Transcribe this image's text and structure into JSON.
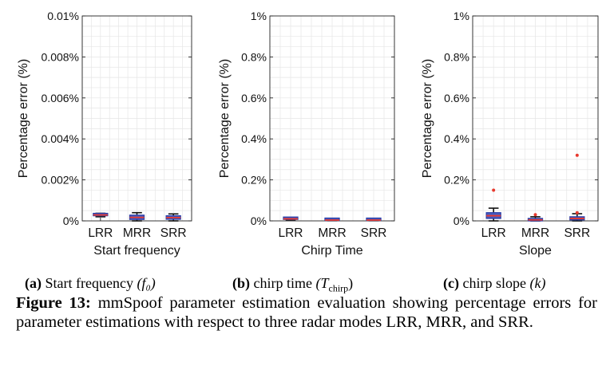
{
  "chart_data": [
    {
      "type": "box",
      "xlabel": "Start frequency",
      "ylabel": "Percentage error (%)",
      "ylim": [
        0,
        0.01
      ],
      "yticks": [
        "0%",
        "0.002%",
        "0.004%",
        "0.006%",
        "0.008%",
        "0.01%"
      ],
      "grid": true,
      "categories": [
        "LRR",
        "MRR",
        "SRR"
      ],
      "boxes": [
        {
          "q1": 0.00025,
          "median": 0.00029,
          "q3": 0.00033,
          "whisker_low": 0.0002,
          "whisker_high": 0.00037,
          "outliers": []
        },
        {
          "q1": 7e-05,
          "median": 0.00017,
          "q3": 0.00028,
          "whisker_low": 0.0,
          "whisker_high": 0.0004,
          "outliers": []
        },
        {
          "q1": 8e-05,
          "median": 0.00016,
          "q3": 0.00025,
          "whisker_low": 0.0,
          "whisker_high": 0.00034,
          "outliers": []
        }
      ]
    },
    {
      "type": "box",
      "xlabel": "Chirp Time",
      "ylabel": "Percentage error (%)",
      "ylim": [
        0,
        1
      ],
      "yticks": [
        "0%",
        "0.2%",
        "0.4%",
        "0.6%",
        "0.8%",
        "1%"
      ],
      "grid": true,
      "categories": [
        "LRR",
        "MRR",
        "SRR"
      ],
      "boxes": [
        {
          "q1": 0.007,
          "median": 0.01,
          "q3": 0.013,
          "whisker_low": 0.005,
          "whisker_high": 0.015,
          "outliers": []
        },
        {
          "q1": 0.002,
          "median": 0.004,
          "q3": 0.006,
          "whisker_low": 0.001,
          "whisker_high": 0.008,
          "outliers": []
        },
        {
          "q1": 0.002,
          "median": 0.004,
          "q3": 0.006,
          "whisker_low": 0.001,
          "whisker_high": 0.008,
          "outliers": []
        }
      ]
    },
    {
      "type": "box",
      "xlabel": "Slope",
      "ylabel": "Percentage error (%)",
      "ylim": [
        0,
        1
      ],
      "yticks": [
        "0%",
        "0.2%",
        "0.4%",
        "0.6%",
        "0.8%",
        "1%"
      ],
      "grid": true,
      "categories": [
        "LRR",
        "MRR",
        "SRR"
      ],
      "boxes": [
        {
          "q1": 0.012,
          "median": 0.025,
          "q3": 0.04,
          "whisker_low": 0.0,
          "whisker_high": 0.062,
          "outliers": [
            0.15
          ]
        },
        {
          "q1": 0.0,
          "median": 0.005,
          "q3": 0.012,
          "whisker_low": 0.0,
          "whisker_high": 0.02,
          "outliers": [
            0.03
          ]
        },
        {
          "q1": 0.005,
          "median": 0.012,
          "q3": 0.02,
          "whisker_low": 0.0,
          "whisker_high": 0.035,
          "outliers": [
            0.32,
            0.04
          ]
        }
      ]
    }
  ],
  "subcaptions": [
    {
      "letter": "(a)",
      "text": "Start frequency",
      "symbol": "(f₀)"
    },
    {
      "letter": "(b)",
      "text": "chirp time",
      "symbol_prefix": "(T",
      "symbol_sub": "chirp",
      "symbol_suffix": ")"
    },
    {
      "letter": "(c)",
      "text": "chirp slope",
      "symbol": "(k)"
    }
  ],
  "caption": {
    "label": "Figure 13:",
    "text": "mmSpoof parameter estimation evaluation showing percentage errors for parameter estimations with respect to three radar modes LRR, MRR, and SRR."
  },
  "colors": {
    "box_edge": "#2b3fa8",
    "box_fill": "#4a5cc0",
    "median": "#e8392e",
    "outlier": "#e8392e",
    "grid": "#e6e6e6",
    "axis": "#222222"
  }
}
